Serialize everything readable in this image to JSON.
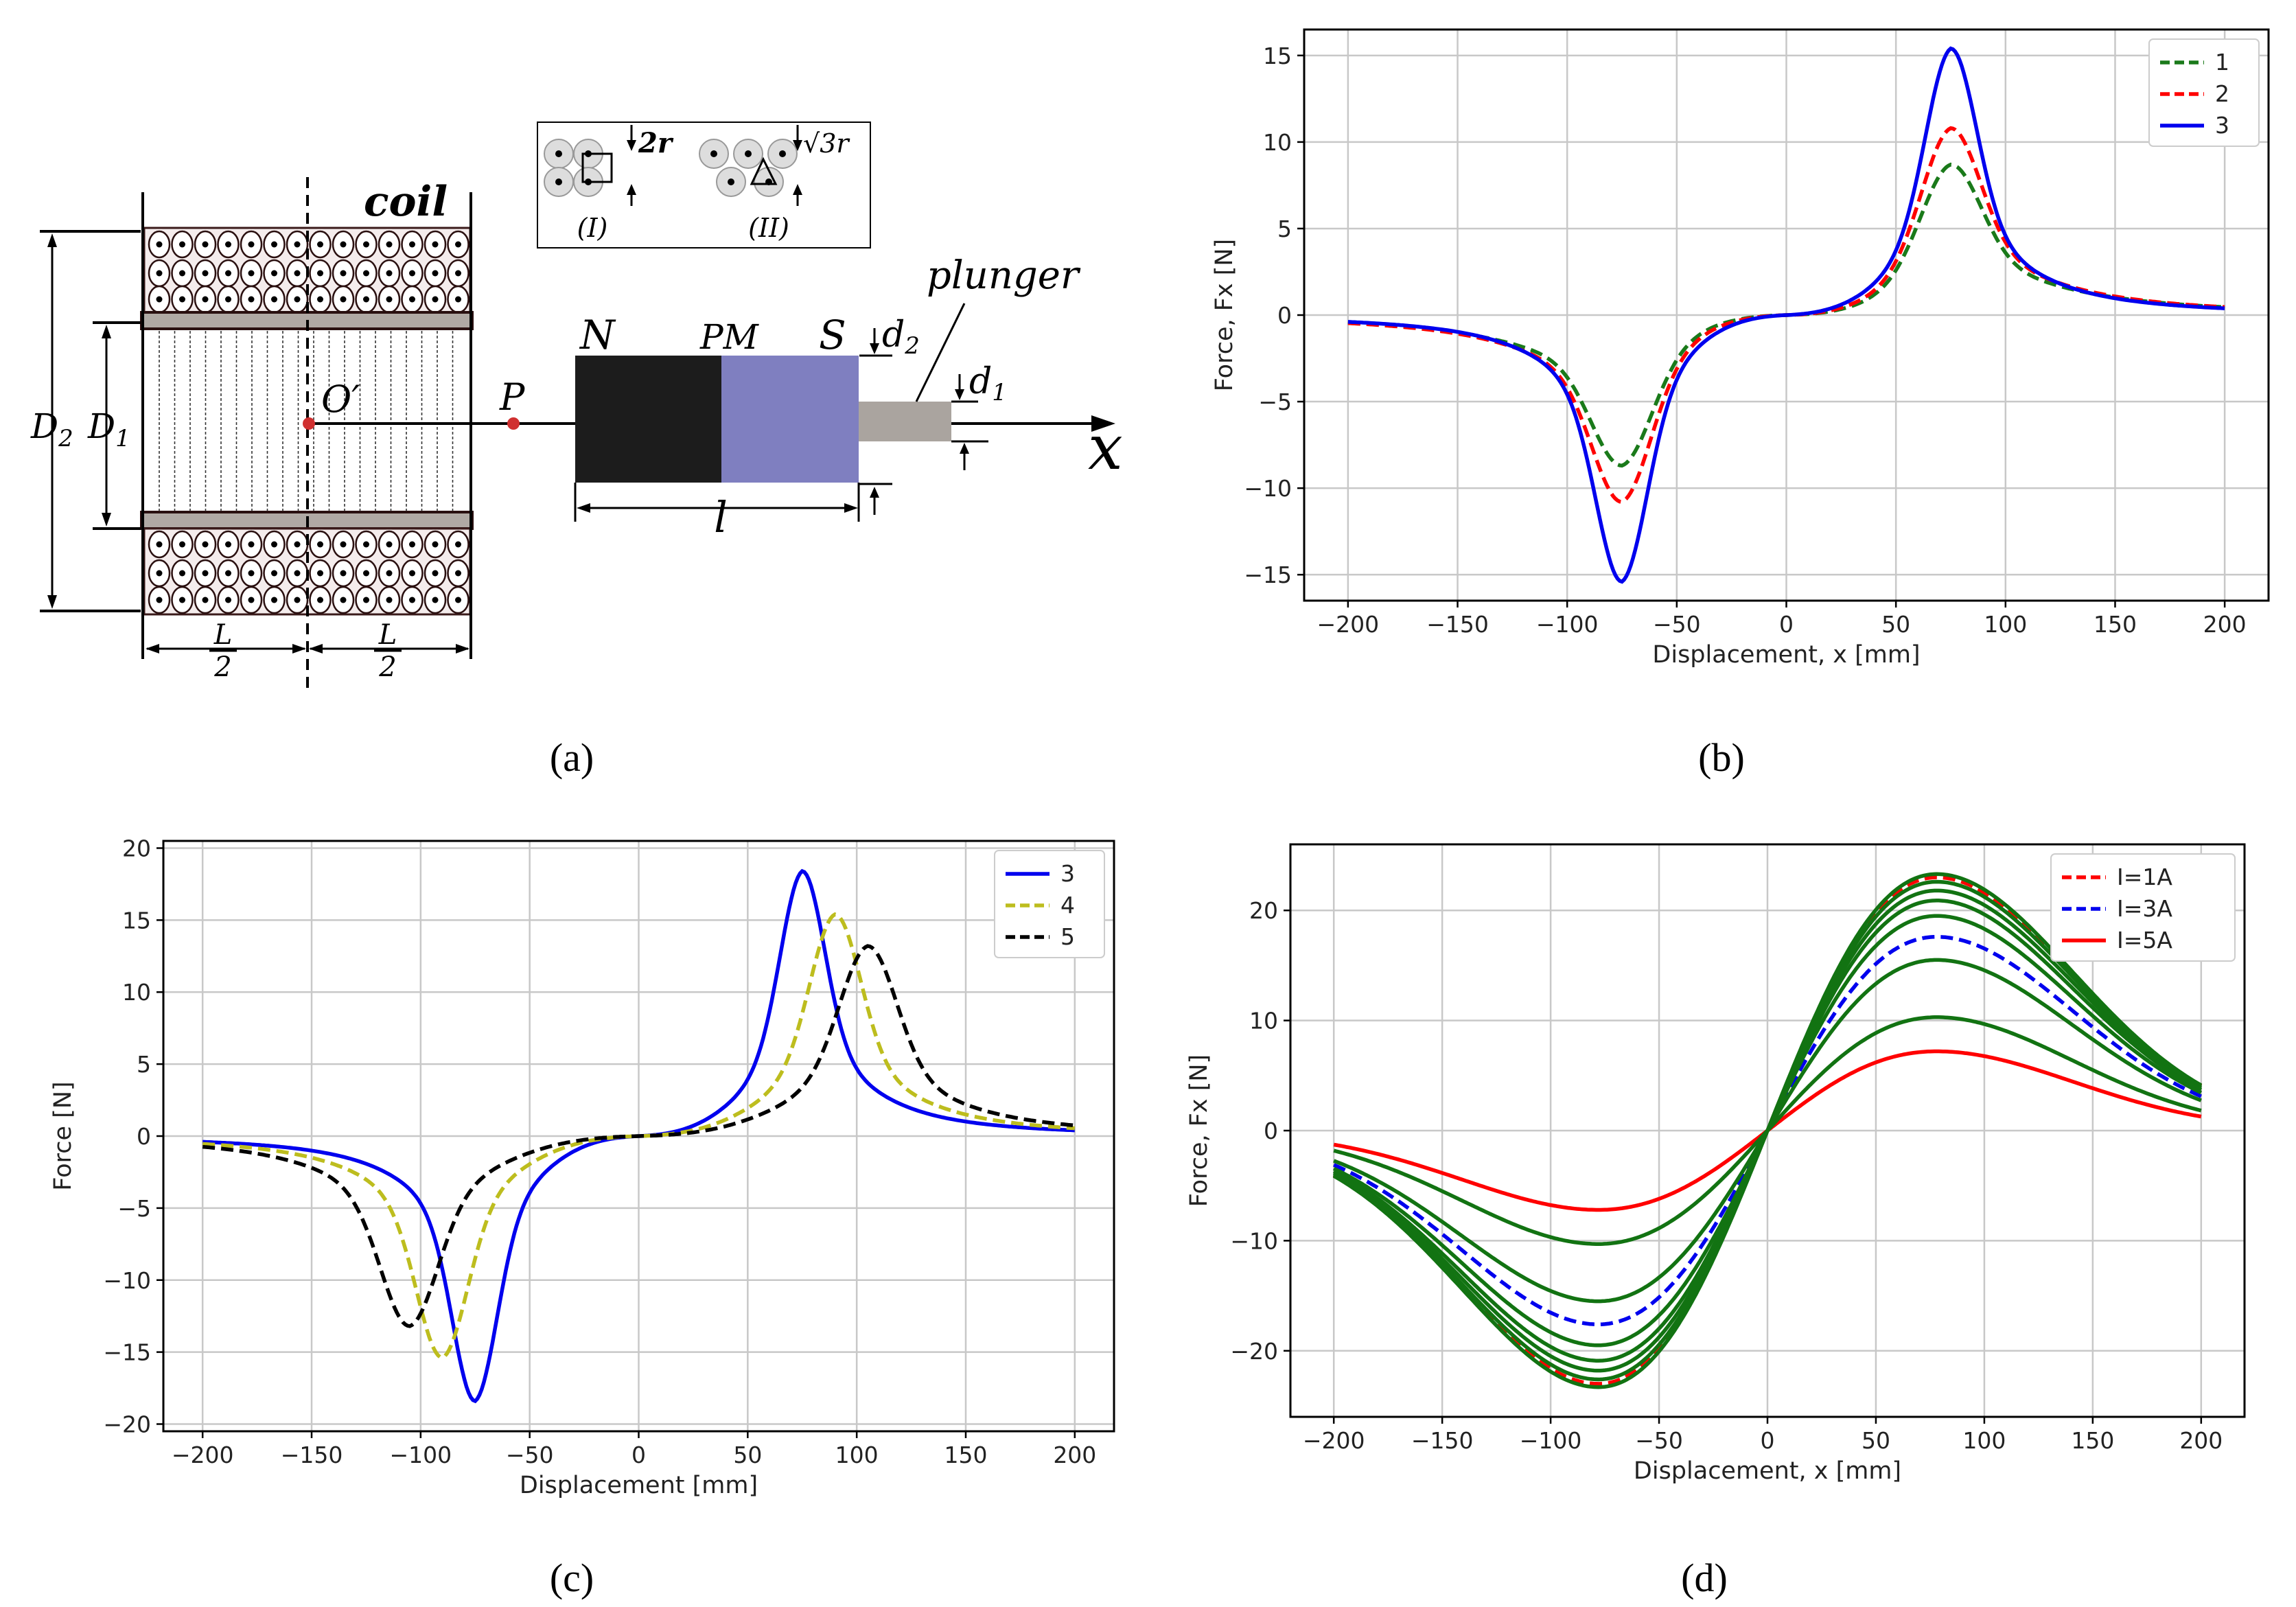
{
  "panels": [
    "(a)",
    "(b)",
    "(c)",
    "(d)"
  ],
  "diagram": {
    "coil": "coil",
    "plunger": "plunger",
    "N": "N",
    "PM": "PM",
    "S": "S",
    "d2": "d",
    "d2_sub": "2",
    "d1": "d",
    "d1_sub": "1",
    "D2": "D",
    "D2_sub": "2",
    "D1": "D",
    "D1_sub": "1",
    "O": "O′",
    "P": "P",
    "l": "l",
    "x": "x",
    "L": "L",
    "two": "2",
    "inset_I": "(I)",
    "inset_II": "(II)",
    "inset_2r": "2r",
    "inset_sqrt": "√3r",
    "colors": {
      "pm_n": "#1c1c1c",
      "pm_s": "#7f7fc0",
      "plunger": "#aaa49f",
      "former": "#b0a9a4"
    }
  },
  "chart_data": [
    {
      "type": "line",
      "panel": "(b)",
      "xlabel": "Displacement, x [mm]",
      "ylabel": "Force, Fx [N]",
      "xlim": [
        -220,
        220
      ],
      "ylim": [
        -16.5,
        16.5
      ],
      "xticks": [
        -200,
        -150,
        -100,
        -50,
        0,
        50,
        100,
        150,
        200
      ],
      "yticks": [
        -15,
        -10,
        -5,
        0,
        5,
        10,
        15
      ],
      "grid": true,
      "legend": "top-right",
      "series": [
        {
          "name": "1",
          "color": "#1a7a1a",
          "dash": "dashed",
          "x0": 75,
          "w": 19,
          "tail": 1.2,
          "peak": 8.7
        },
        {
          "name": "2",
          "color": "#ff0000",
          "dash": "dashed",
          "x0": 75,
          "w": 18.5,
          "tail": 1.1,
          "peak": 10.8
        },
        {
          "name": "3",
          "color": "#0000ee",
          "dash": "solid",
          "x0": 75,
          "w": 16,
          "tail": 0.95,
          "peak": 15.4
        }
      ]
    },
    {
      "type": "line",
      "panel": "(c)",
      "xlabel": "Displacement [mm]",
      "ylabel": "Force [N]",
      "xlim": [
        -218,
        218
      ],
      "ylim": [
        -20.5,
        20.5
      ],
      "xticks": [
        -200,
        -150,
        -100,
        -50,
        0,
        50,
        100,
        150,
        200
      ],
      "yticks": [
        -20,
        -15,
        -10,
        -5,
        0,
        5,
        10,
        15,
        20
      ],
      "grid": true,
      "legend": "top-right",
      "series": [
        {
          "name": "3",
          "color": "#0000ee",
          "dash": "solid",
          "x0": 75,
          "w": 14,
          "tail": 1.0,
          "peak": 18.4
        },
        {
          "name": "4",
          "color": "#bdbd1e",
          "dash": "dashed",
          "x0": 90,
          "w": 16,
          "tail": 1.0,
          "peak": 15.4
        },
        {
          "name": "5",
          "color": "#000000",
          "dash": "dashed",
          "x0": 105,
          "w": 18,
          "tail": 1.0,
          "peak": 13.2
        }
      ]
    },
    {
      "type": "line",
      "panel": "(d)",
      "xlabel": "Displacement, x [mm]",
      "ylabel": "Force, Fx [N]",
      "xlim": [
        -220,
        220
      ],
      "ylim": [
        -26,
        26
      ],
      "xticks": [
        -200,
        -150,
        -100,
        -50,
        0,
        50,
        100,
        150,
        200
      ],
      "yticks": [
        -20,
        -10,
        0,
        10,
        20
      ],
      "grid": true,
      "legend": "top-right",
      "series": [
        {
          "name": "I=1A",
          "color": "#ff0000",
          "dash": "dashed",
          "peak": 23.0
        },
        {
          "name": "I=3A",
          "color": "#0000ee",
          "dash": "dashed",
          "peak": 17.6
        },
        {
          "name": "I=5A",
          "color": "#ff0000",
          "dash": "solid",
          "peak": 7.2
        },
        {
          "name": "",
          "color": "#127312",
          "dash": "solid",
          "peak": 23.3
        },
        {
          "name": "",
          "color": "#127312",
          "dash": "solid",
          "peak": 22.6
        },
        {
          "name": "",
          "color": "#127312",
          "dash": "solid",
          "peak": 21.8
        },
        {
          "name": "",
          "color": "#127312",
          "dash": "solid",
          "peak": 20.9
        },
        {
          "name": "",
          "color": "#127312",
          "dash": "solid",
          "peak": 19.5
        },
        {
          "name": "",
          "color": "#127312",
          "dash": "solid",
          "peak": 15.5
        },
        {
          "name": "",
          "color": "#127312",
          "dash": "solid",
          "peak": 10.3
        }
      ]
    }
  ]
}
